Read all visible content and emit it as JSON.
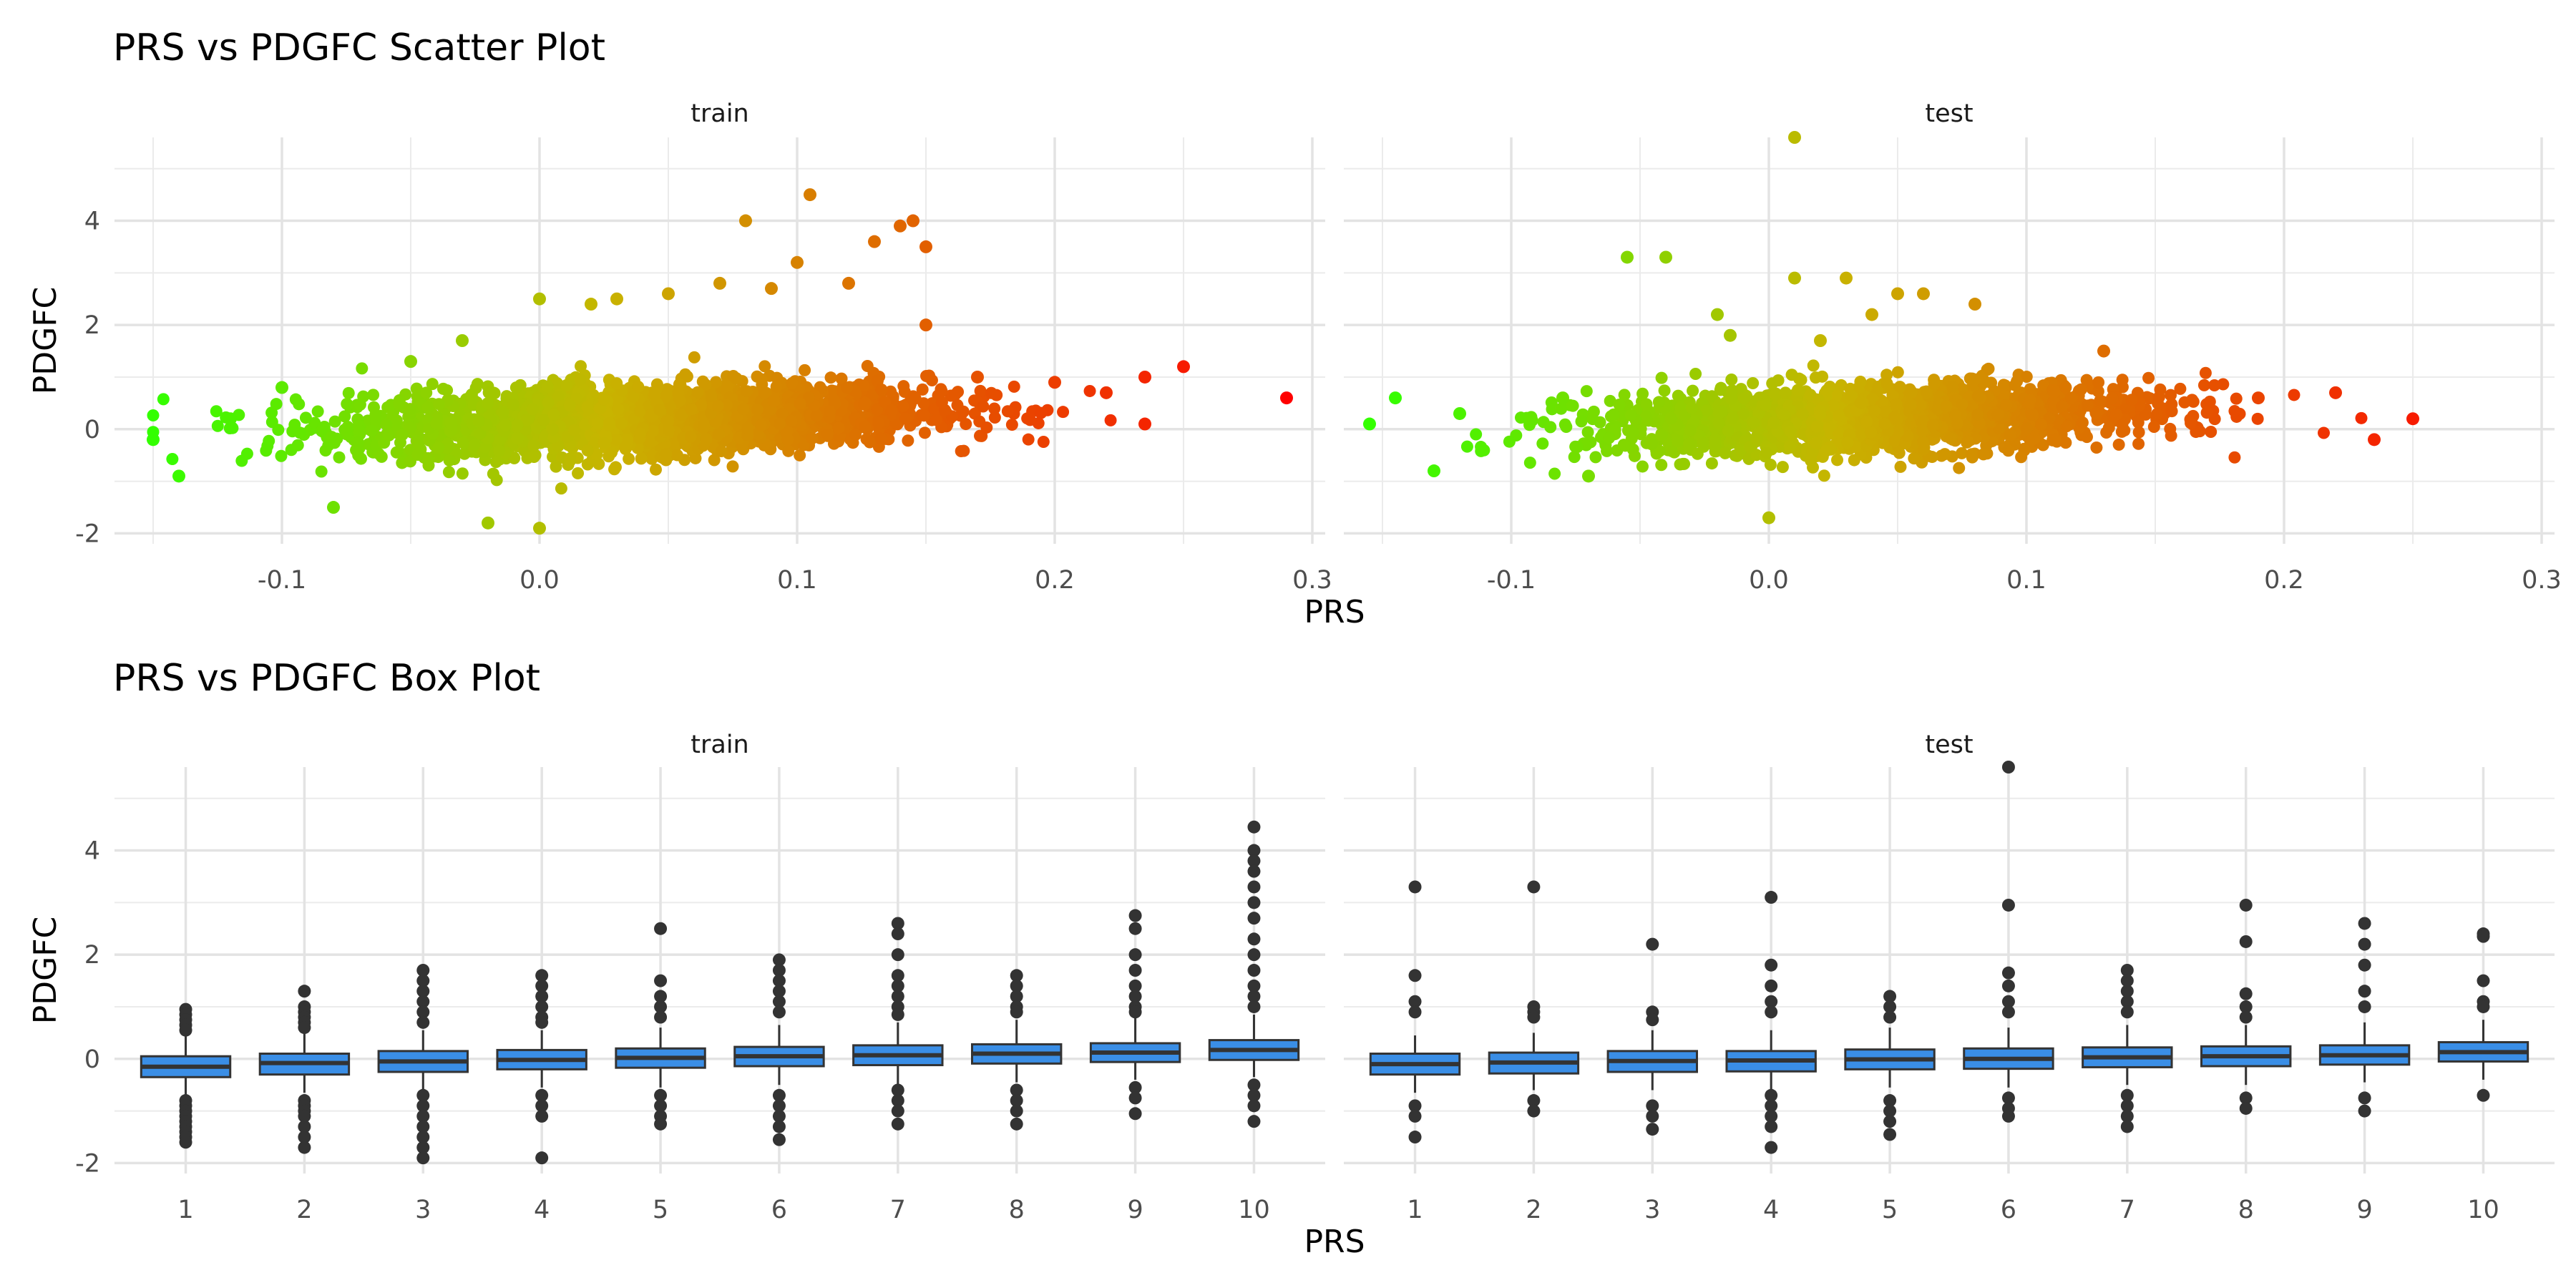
{
  "chart_data": [
    {
      "type": "scatter",
      "title": "PRS vs PDGFC Scatter Plot",
      "xlabel": "PRS",
      "ylabel": "PDGFC",
      "facets": [
        "train",
        "test"
      ],
      "xlim": [
        -0.165,
        0.305
      ],
      "ylim": [
        -2.2,
        5.6
      ],
      "xticks": [
        -0.1,
        0.0,
        0.1,
        0.2,
        0.3
      ],
      "xtick_labels": [
        "-0.1",
        "0.0",
        "0.1",
        "0.2",
        "0.3"
      ],
      "yticks": [
        -2,
        0,
        2,
        4
      ],
      "ytick_labels": [
        "-2",
        "0",
        "2",
        "4"
      ],
      "color_scale": {
        "low": "#33ff00",
        "mid": "#c8b400",
        "high": "#ff0000",
        "domain": [
          -0.15,
          0.29
        ]
      },
      "grid": true,
      "series": [
        {
          "facet": "train",
          "points": [
            [
              -0.15,
              -0.2
            ],
            [
              -0.14,
              -0.9
            ],
            [
              -0.12,
              0.2
            ],
            [
              -0.1,
              0.8
            ],
            [
              -0.08,
              -1.5
            ],
            [
              -0.05,
              1.3
            ],
            [
              -0.03,
              1.7
            ],
            [
              -0.02,
              -1.8
            ],
            [
              0.0,
              2.5
            ],
            [
              0.0,
              -1.9
            ],
            [
              0.02,
              2.4
            ],
            [
              0.03,
              2.5
            ],
            [
              0.05,
              2.6
            ],
            [
              0.07,
              2.8
            ],
            [
              0.08,
              4.0
            ],
            [
              0.09,
              2.7
            ],
            [
              0.1,
              3.2
            ],
            [
              0.105,
              4.5
            ],
            [
              0.12,
              2.8
            ],
            [
              0.13,
              3.6
            ],
            [
              0.14,
              3.9
            ],
            [
              0.145,
              4.0
            ],
            [
              0.15,
              3.5
            ],
            [
              0.15,
              2.0
            ],
            [
              0.17,
              1.0
            ],
            [
              0.2,
              0.9
            ],
            [
              0.22,
              0.7
            ],
            [
              0.235,
              1.0
            ],
            [
              0.235,
              0.1
            ],
            [
              0.25,
              1.2
            ],
            [
              0.29,
              0.6
            ]
          ]
        },
        {
          "facet": "test",
          "points": [
            [
              -0.155,
              0.1
            ],
            [
              -0.145,
              0.6
            ],
            [
              -0.13,
              -0.8
            ],
            [
              -0.12,
              0.3
            ],
            [
              -0.08,
              0.6
            ],
            [
              -0.07,
              -0.9
            ],
            [
              -0.055,
              3.3
            ],
            [
              -0.04,
              3.3
            ],
            [
              -0.02,
              2.2
            ],
            [
              -0.015,
              1.8
            ],
            [
              0.0,
              -1.7
            ],
            [
              0.01,
              5.6
            ],
            [
              0.01,
              2.9
            ],
            [
              0.02,
              1.7
            ],
            [
              0.03,
              2.9
            ],
            [
              0.04,
              2.2
            ],
            [
              0.05,
              2.6
            ],
            [
              0.06,
              2.6
            ],
            [
              0.08,
              2.4
            ],
            [
              0.13,
              1.5
            ],
            [
              0.19,
              0.6
            ],
            [
              0.22,
              0.7
            ],
            [
              0.235,
              -0.2
            ],
            [
              0.25,
              0.2
            ]
          ]
        }
      ]
    },
    {
      "type": "box",
      "title": "PRS vs PDGFC Box Plot",
      "xlabel": "PRS",
      "ylabel": "PDGFC",
      "facets": [
        "train",
        "test"
      ],
      "categories": [
        "1",
        "2",
        "3",
        "4",
        "5",
        "6",
        "7",
        "8",
        "9",
        "10"
      ],
      "ylim": [
        -2.2,
        5.6
      ],
      "yticks": [
        -2,
        0,
        2,
        4
      ],
      "ytick_labels": [
        "-2",
        "0",
        "2",
        "4"
      ],
      "box_fill": "#3a8ee6",
      "grid": true,
      "series": [
        {
          "facet": "train",
          "boxes": [
            {
              "q1": -0.35,
              "median": -0.15,
              "q3": 0.05,
              "whisker_low": -0.7,
              "whisker_high": 0.45,
              "outliers": [
                0.95,
                0.85,
                0.75,
                0.65,
                0.55,
                -0.8,
                -0.9,
                -1.0,
                -1.1,
                -1.2,
                -1.3,
                -1.4,
                -1.5,
                -1.6
              ]
            },
            {
              "q1": -0.3,
              "median": -0.08,
              "q3": 0.1,
              "whisker_low": -0.65,
              "whisker_high": 0.5,
              "outliers": [
                1.3,
                1.0,
                0.9,
                0.8,
                0.7,
                0.6,
                -0.8,
                -0.9,
                -1.0,
                -1.1,
                -1.3,
                -1.5,
                -1.7
              ]
            },
            {
              "q1": -0.25,
              "median": -0.05,
              "q3": 0.15,
              "whisker_low": -0.6,
              "whisker_high": 0.55,
              "outliers": [
                1.7,
                1.5,
                1.3,
                1.1,
                0.9,
                0.7,
                -0.7,
                -0.9,
                -1.1,
                -1.3,
                -1.5,
                -1.7,
                -1.9
              ]
            },
            {
              "q1": -0.2,
              "median": -0.02,
              "q3": 0.17,
              "whisker_low": -0.55,
              "whisker_high": 0.55,
              "outliers": [
                1.6,
                1.4,
                1.2,
                1.0,
                0.8,
                0.7,
                -0.7,
                -0.9,
                -1.1,
                -1.9
              ]
            },
            {
              "q1": -0.17,
              "median": 0.02,
              "q3": 0.2,
              "whisker_low": -0.55,
              "whisker_high": 0.6,
              "outliers": [
                2.5,
                1.5,
                1.2,
                1.0,
                0.8,
                -0.7,
                -0.9,
                -1.1,
                -1.25
              ]
            },
            {
              "q1": -0.14,
              "median": 0.05,
              "q3": 0.23,
              "whisker_low": -0.5,
              "whisker_high": 0.65,
              "outliers": [
                1.9,
                1.7,
                1.5,
                1.3,
                1.1,
                0.9,
                -0.7,
                -0.9,
                -1.1,
                -1.3,
                -1.55
              ]
            },
            {
              "q1": -0.12,
              "median": 0.07,
              "q3": 0.26,
              "whisker_low": -0.5,
              "whisker_high": 0.7,
              "outliers": [
                2.6,
                2.4,
                2.0,
                1.6,
                1.4,
                1.2,
                1.0,
                0.85,
                -0.6,
                -0.8,
                -1.0,
                -1.25
              ]
            },
            {
              "q1": -0.09,
              "median": 0.1,
              "q3": 0.28,
              "whisker_low": -0.45,
              "whisker_high": 0.75,
              "outliers": [
                1.6,
                1.4,
                1.2,
                1.0,
                0.9,
                -0.6,
                -0.8,
                -1.0,
                -1.25
              ]
            },
            {
              "q1": -0.06,
              "median": 0.12,
              "q3": 0.3,
              "whisker_low": -0.4,
              "whisker_high": 0.8,
              "outliers": [
                2.75,
                2.5,
                2.0,
                1.7,
                1.4,
                1.2,
                1.0,
                0.9,
                -0.55,
                -0.75,
                -1.05
              ]
            },
            {
              "q1": -0.02,
              "median": 0.17,
              "q3": 0.36,
              "whisker_low": -0.35,
              "whisker_high": 0.85,
              "outliers": [
                4.45,
                4.0,
                3.8,
                3.6,
                3.3,
                3.0,
                2.7,
                2.3,
                2.0,
                1.7,
                1.4,
                1.2,
                1.0,
                -0.5,
                -0.7,
                -0.9,
                -1.2
              ]
            }
          ]
        },
        {
          "facet": "test",
          "boxes": [
            {
              "q1": -0.3,
              "median": -0.1,
              "q3": 0.1,
              "whisker_low": -0.65,
              "whisker_high": 0.45,
              "outliers": [
                3.3,
                1.6,
                1.1,
                0.9,
                -0.9,
                -1.1,
                -1.5
              ]
            },
            {
              "q1": -0.28,
              "median": -0.07,
              "q3": 0.12,
              "whisker_low": -0.6,
              "whisker_high": 0.5,
              "outliers": [
                3.3,
                1.0,
                0.9,
                0.8,
                -0.8,
                -1.0
              ]
            },
            {
              "q1": -0.25,
              "median": -0.04,
              "q3": 0.15,
              "whisker_low": -0.6,
              "whisker_high": 0.55,
              "outliers": [
                2.2,
                0.9,
                0.75,
                -0.9,
                -1.1,
                -1.35
              ]
            },
            {
              "q1": -0.24,
              "median": -0.03,
              "q3": 0.15,
              "whisker_low": -0.6,
              "whisker_high": 0.55,
              "outliers": [
                3.1,
                1.8,
                1.4,
                1.1,
                0.9,
                -0.7,
                -0.9,
                -1.1,
                -1.3,
                -1.7
              ]
            },
            {
              "q1": -0.2,
              "median": -0.01,
              "q3": 0.18,
              "whisker_low": -0.55,
              "whisker_high": 0.6,
              "outliers": [
                1.2,
                1.0,
                0.8,
                -0.8,
                -1.0,
                -1.2,
                -1.45
              ]
            },
            {
              "q1": -0.19,
              "median": 0.0,
              "q3": 0.2,
              "whisker_low": -0.55,
              "whisker_high": 0.6,
              "outliers": [
                5.6,
                2.95,
                1.65,
                1.4,
                1.1,
                0.9,
                -0.75,
                -0.95,
                -1.1
              ]
            },
            {
              "q1": -0.16,
              "median": 0.03,
              "q3": 0.22,
              "whisker_low": -0.5,
              "whisker_high": 0.65,
              "outliers": [
                1.7,
                1.5,
                1.3,
                1.1,
                0.9,
                -0.7,
                -0.9,
                -1.1,
                -1.3
              ]
            },
            {
              "q1": -0.14,
              "median": 0.05,
              "q3": 0.24,
              "whisker_low": -0.5,
              "whisker_high": 0.65,
              "outliers": [
                2.95,
                2.25,
                1.25,
                1.0,
                0.8,
                -0.75,
                -0.95
              ]
            },
            {
              "q1": -0.11,
              "median": 0.07,
              "q3": 0.26,
              "whisker_low": -0.45,
              "whisker_high": 0.7,
              "outliers": [
                2.6,
                2.2,
                1.8,
                1.3,
                1.0,
                -0.75,
                -1.0
              ]
            },
            {
              "q1": -0.05,
              "median": 0.13,
              "q3": 0.32,
              "whisker_low": -0.4,
              "whisker_high": 0.75,
              "outliers": [
                2.4,
                2.35,
                1.5,
                1.1,
                1.0,
                -0.7
              ]
            }
          ]
        }
      ]
    }
  ]
}
